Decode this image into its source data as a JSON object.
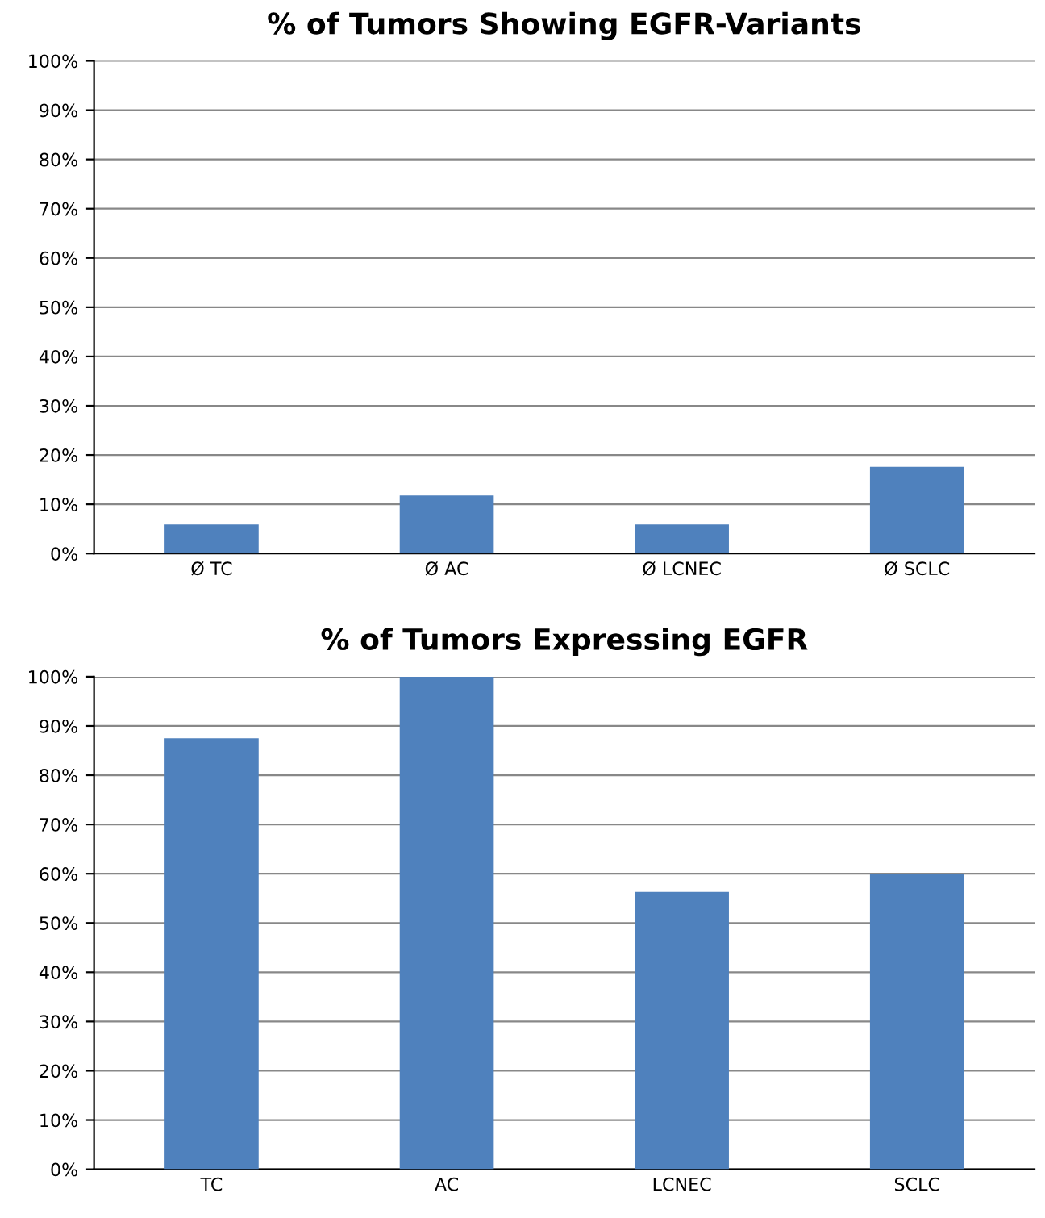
{
  "chart_data": [
    {
      "type": "bar",
      "title": "% of Tumors Showing EGFR-Variants",
      "categories": [
        "Ø TC",
        "Ø AC",
        "Ø LCNEC",
        "Ø SCLC"
      ],
      "values": [
        5.9,
        11.8,
        5.9,
        17.6
      ],
      "color": "#4f81bd",
      "ylim": [
        0,
        100
      ],
      "yticks": [
        {
          "value": 0,
          "label": "0%"
        },
        {
          "value": 10,
          "label": "10%"
        },
        {
          "value": 20,
          "label": "20%"
        },
        {
          "value": 30,
          "label": "30%"
        },
        {
          "value": 40,
          "label": "40%"
        },
        {
          "value": 50,
          "label": "50%"
        },
        {
          "value": 60,
          "label": "60%"
        },
        {
          "value": 70,
          "label": "70%"
        },
        {
          "value": 80,
          "label": "80%"
        },
        {
          "value": 90,
          "label": "90%"
        },
        {
          "value": 100,
          "label": "100%"
        }
      ],
      "grid": "y"
    },
    {
      "type": "bar",
      "title": "% of Tumors Expressing EGFR",
      "categories": [
        "TC",
        "AC",
        "LCNEC",
        "SCLC"
      ],
      "values": [
        87.5,
        100,
        56.3,
        60
      ],
      "color": "#4f81bd",
      "ylim": [
        0,
        100
      ],
      "yticks": [
        {
          "value": 0,
          "label": "0%"
        },
        {
          "value": 10,
          "label": "10%"
        },
        {
          "value": 20,
          "label": "20%"
        },
        {
          "value": 30,
          "label": "30%"
        },
        {
          "value": 40,
          "label": "40%"
        },
        {
          "value": 50,
          "label": "50%"
        },
        {
          "value": 60,
          "label": "60%"
        },
        {
          "value": 70,
          "label": "70%"
        },
        {
          "value": 80,
          "label": "80%"
        },
        {
          "value": 90,
          "label": "90%"
        },
        {
          "value": 100,
          "label": "100%"
        }
      ],
      "grid": "y"
    }
  ]
}
